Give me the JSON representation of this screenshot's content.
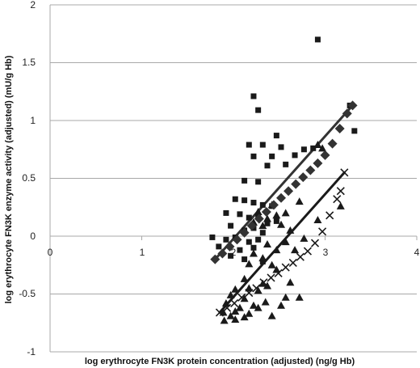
{
  "chart_data": {
    "type": "scatter",
    "title": "",
    "xlabel": "log erythrocyte FN3K protein concentration (adjusted) (ng/g Hb)",
    "ylabel": "log erythrocyte FN3K enzyme activity (adjusted) (mU/g Hb)",
    "xlim": [
      0,
      4
    ],
    "ylim": [
      -1,
      2
    ],
    "x_ticks": [
      "0",
      "1",
      "2",
      "3",
      "4"
    ],
    "y_ticks": [
      "-1",
      "-0.5",
      "0",
      "0.5",
      "1",
      "1.5",
      "2"
    ],
    "grid": "horizontal",
    "legend": "none",
    "series": [
      {
        "marker": "square",
        "color": "#1a1a1a",
        "points": [
          [
            2.92,
            1.7
          ],
          [
            2.22,
            1.21
          ],
          [
            2.27,
            1.09
          ],
          [
            3.27,
            1.13
          ],
          [
            3.32,
            0.91
          ],
          [
            2.47,
            0.87
          ],
          [
            2.77,
            0.75
          ],
          [
            2.87,
            0.76
          ],
          [
            2.52,
            0.77
          ],
          [
            2.17,
            0.79
          ],
          [
            2.32,
            0.79
          ],
          [
            2.22,
            0.69
          ],
          [
            2.42,
            0.69
          ],
          [
            2.67,
            0.7
          ],
          [
            2.57,
            0.62
          ],
          [
            2.37,
            0.61
          ],
          [
            2.12,
            0.48
          ],
          [
            2.27,
            0.47
          ],
          [
            2.02,
            0.32
          ],
          [
            2.12,
            0.31
          ],
          [
            2.22,
            0.29
          ],
          [
            2.32,
            0.27
          ],
          [
            2.42,
            0.26
          ],
          [
            1.92,
            0.2
          ],
          [
            2.07,
            0.19
          ],
          [
            2.17,
            0.16
          ],
          [
            2.27,
            0.17
          ],
          [
            2.37,
            0.11
          ],
          [
            2.47,
            0.13
          ],
          [
            1.97,
            0.09
          ],
          [
            2.12,
            0.05
          ],
          [
            2.22,
            0.07
          ],
          [
            2.32,
            0.03
          ],
          [
            1.77,
            -0.01
          ],
          [
            1.92,
            -0.03
          ],
          [
            2.02,
            -0.01
          ],
          [
            2.17,
            -0.05
          ],
          [
            2.27,
            -0.03
          ],
          [
            1.84,
            -0.09
          ],
          [
            2.07,
            -0.12
          ],
          [
            2.22,
            -0.1
          ],
          [
            1.97,
            -0.17
          ],
          [
            2.12,
            -0.2
          ],
          [
            2.32,
            -0.22
          ]
        ]
      },
      {
        "marker": "triangle",
        "color": "#1a1a1a",
        "points": [
          [
            3.17,
            0.26
          ],
          [
            2.97,
            0.76
          ],
          [
            2.92,
            0.79
          ],
          [
            2.72,
            0.3
          ],
          [
            2.57,
            0.2
          ],
          [
            2.52,
            0.1
          ],
          [
            2.42,
            0.27
          ],
          [
            2.47,
            0.18
          ],
          [
            2.37,
            0.15
          ],
          [
            2.27,
            0.21
          ],
          [
            2.32,
            0.09
          ],
          [
            2.22,
            0.12
          ],
          [
            2.62,
            0.05
          ],
          [
            2.77,
            -0.02
          ],
          [
            2.67,
            -0.12
          ],
          [
            2.57,
            -0.05
          ],
          [
            2.47,
            -0.12
          ],
          [
            2.37,
            -0.07
          ],
          [
            2.32,
            -0.19
          ],
          [
            2.22,
            -0.15
          ],
          [
            2.17,
            -0.24
          ],
          [
            2.42,
            -0.25
          ],
          [
            2.47,
            -0.29
          ],
          [
            2.62,
            -0.4
          ],
          [
            2.57,
            -0.53
          ],
          [
            2.37,
            -0.43
          ],
          [
            2.32,
            -0.41
          ],
          [
            2.27,
            -0.47
          ],
          [
            2.12,
            -0.37
          ],
          [
            2.17,
            -0.45
          ],
          [
            2.02,
            -0.46
          ],
          [
            2.12,
            -0.54
          ],
          [
            1.97,
            -0.51
          ],
          [
            1.92,
            -0.58
          ],
          [
            2.07,
            -0.62
          ],
          [
            2.22,
            -0.6
          ],
          [
            1.89,
            -0.66
          ],
          [
            1.97,
            -0.69
          ],
          [
            2.02,
            -0.65
          ],
          [
            2.17,
            -0.67
          ],
          [
            2.27,
            -0.62
          ],
          [
            2.35,
            -0.57
          ],
          [
            2.52,
            -0.6
          ],
          [
            1.9,
            -0.73
          ],
          [
            2.02,
            -0.72
          ],
          [
            2.12,
            -0.7
          ],
          [
            2.42,
            -0.69
          ],
          [
            2.72,
            -0.53
          ],
          [
            2.92,
            0.14
          ]
        ]
      },
      {
        "marker": "diamond",
        "color": "#333333",
        "points": [
          [
            1.8,
            -0.2
          ],
          [
            1.88,
            -0.15
          ],
          [
            1.96,
            -0.09
          ],
          [
            2.04,
            -0.03
          ],
          [
            2.12,
            0.03
          ],
          [
            2.2,
            0.09
          ],
          [
            2.28,
            0.15
          ],
          [
            2.36,
            0.21
          ],
          [
            2.44,
            0.27
          ],
          [
            2.52,
            0.33
          ],
          [
            2.6,
            0.39
          ],
          [
            2.68,
            0.45
          ],
          [
            2.76,
            0.51
          ],
          [
            2.84,
            0.57
          ],
          [
            2.92,
            0.63
          ],
          [
            3.0,
            0.7
          ],
          [
            3.08,
            0.8
          ],
          [
            3.16,
            0.93
          ],
          [
            3.24,
            1.06
          ],
          [
            3.3,
            1.13
          ]
        ]
      },
      {
        "marker": "cross",
        "color": "#1a1a1a",
        "points": [
          [
            1.85,
            -0.66
          ],
          [
            1.93,
            -0.62
          ],
          [
            2.01,
            -0.58
          ],
          [
            2.09,
            -0.53
          ],
          [
            2.17,
            -0.49
          ],
          [
            2.25,
            -0.45
          ],
          [
            2.33,
            -0.4
          ],
          [
            2.41,
            -0.36
          ],
          [
            2.49,
            -0.32
          ],
          [
            2.57,
            -0.27
          ],
          [
            2.65,
            -0.23
          ],
          [
            2.73,
            -0.18
          ],
          [
            2.81,
            -0.13
          ],
          [
            2.89,
            -0.06
          ],
          [
            2.97,
            0.04
          ],
          [
            3.05,
            0.18
          ],
          [
            3.13,
            0.32
          ],
          [
            3.17,
            0.39
          ],
          [
            3.21,
            0.55
          ]
        ]
      }
    ],
    "trendlines": [
      {
        "color": "#333333",
        "x": [
          1.8,
          3.3
        ],
        "y": [
          -0.2,
          1.13
        ]
      },
      {
        "color": "#1a1a1a",
        "x": [
          1.85,
          3.21
        ],
        "y": [
          -0.66,
          0.55
        ]
      }
    ]
  }
}
